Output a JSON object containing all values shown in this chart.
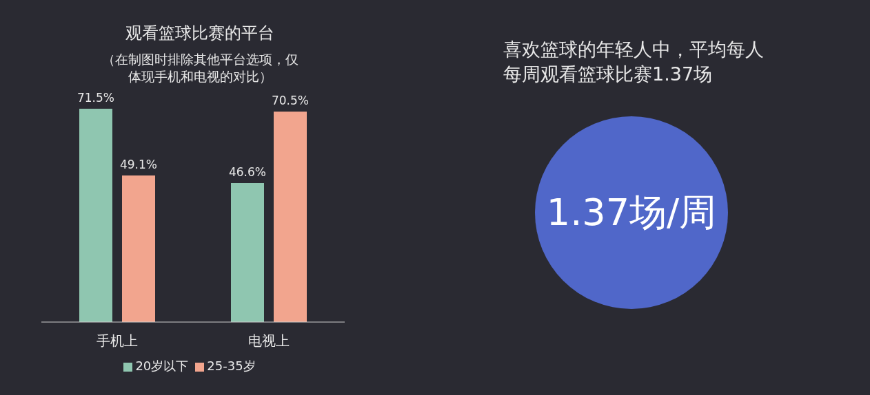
{
  "chart_data": [
    {
      "type": "bar",
      "title": "观看篮球比赛的平台",
      "subtitle": "（在制图时排除其他平台选项，仅体现手机和电视的对比）",
      "categories": [
        "手机上",
        "电视上"
      ],
      "series": [
        {
          "name": "20岁以下",
          "color": "#8fc6b0",
          "values": [
            71.5,
            46.6
          ],
          "value_labels": [
            "71.5%",
            "46.6%"
          ]
        },
        {
          "name": "25-35岁",
          "color": "#f2a58e",
          "values": [
            49.1,
            70.5
          ],
          "value_labels": [
            "49.1%",
            "70.5%"
          ]
        }
      ],
      "legend": "bottom",
      "grid": false,
      "tick_labels": "x"
    },
    {
      "type": "other",
      "title": "喜欢篮球的年轻人中，平均每人每周观看篮球比赛1.37场",
      "annotations": [
        "1.37场/周"
      ],
      "color": "#5067c9"
    }
  ]
}
